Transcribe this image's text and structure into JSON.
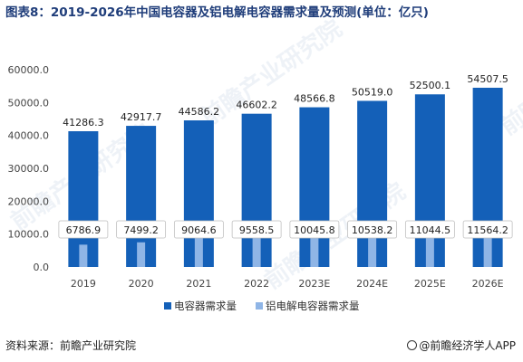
{
  "title": "图表8：2019-2026年中国电容器及铝电解电容器需求量及预测(单位：亿只)",
  "source": "资料来源：前瞻产业研究院",
  "brand": "@前瞻经济学人APP",
  "watermark": "前瞻产业研究院",
  "colors": {
    "series1": "#1460b8",
    "series2": "#8fb5e6",
    "label_border": "#bfbfbf",
    "axis_text": "#444444"
  },
  "chart_data": {
    "type": "bar",
    "title": "图表8：2019-2026年中国电容器及铝电解电容器需求量及预测(单位：亿只)",
    "categories": [
      "2019",
      "2020",
      "2021",
      "2022",
      "2023E",
      "2024E",
      "2025E",
      "2026E"
    ],
    "series": [
      {
        "name": "电容器需求量",
        "values": [
          41286.3,
          42917.7,
          44586.2,
          46602.2,
          48566.8,
          50519.0,
          52500.1,
          54507.5
        ]
      },
      {
        "name": "铝电解电容器需求量",
        "values": [
          6786.9,
          7499.2,
          9064.6,
          9558.5,
          10045.8,
          10538.2,
          11044.5,
          11564.2
        ]
      }
    ],
    "value_labels": [
      [
        "41286.3",
        "42917.7",
        "44586.2",
        "46602.2",
        "48566.8",
        "50519.0",
        "52500.1",
        "54507.5"
      ],
      [
        "6786.9",
        "7499.2",
        "9064.6",
        "9558.5",
        "10045.8",
        "10538.2",
        "11044.5",
        "11564.2"
      ]
    ],
    "ylim": [
      0,
      60000
    ],
    "yticks": [
      "0.0",
      "10000.0",
      "20000.0",
      "30000.0",
      "40000.0",
      "50000.0",
      "60000.0"
    ],
    "ytick_values": [
      0,
      10000,
      20000,
      30000,
      40000,
      50000,
      60000
    ],
    "xlabel": "",
    "ylabel": "",
    "grid": false,
    "legend_position": "bottom-center"
  }
}
